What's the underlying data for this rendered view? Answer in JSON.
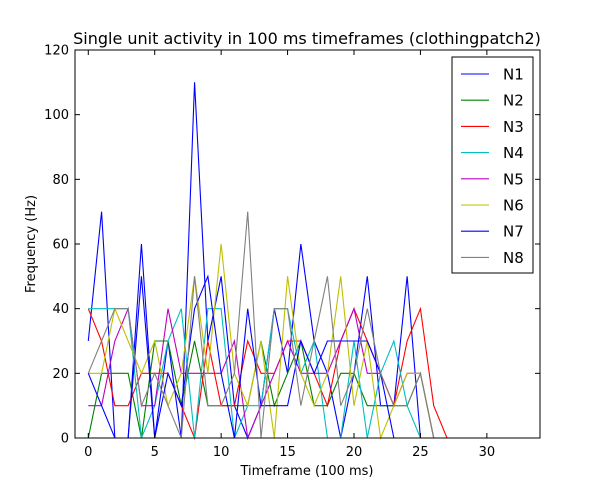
{
  "chart_data": {
    "type": "line",
    "title": "Single unit activity in 100 ms timeframes (clothingpatch2)",
    "xlabel": "Timeframe (100 ms)",
    "ylabel": "Frequency (Hz)",
    "xlim": [
      -1,
      34
    ],
    "ylim": [
      0,
      120
    ],
    "xticks": [
      0,
      5,
      10,
      15,
      20,
      25,
      30
    ],
    "yticks": [
      0,
      20,
      40,
      60,
      80,
      100,
      120
    ],
    "legend": "top-right",
    "grid": false,
    "x": [
      0,
      1,
      2,
      3,
      4,
      5,
      6,
      7,
      8,
      9,
      10,
      11,
      12,
      13,
      14,
      15,
      16,
      17,
      18,
      19,
      20,
      21,
      22,
      23,
      24,
      25,
      26,
      27,
      28,
      29,
      30,
      31,
      32,
      33
    ],
    "series": [
      {
        "name": "N1",
        "color": "#0000ff",
        "values": [
          30,
          70,
          0,
          0,
          60,
          0,
          30,
          0,
          110,
          30,
          50,
          10,
          0,
          10,
          40,
          20,
          60,
          30,
          20,
          0,
          20,
          50,
          10,
          10,
          50,
          0,
          0,
          0,
          0,
          0,
          0,
          0,
          0,
          0
        ]
      },
      {
        "name": "N2",
        "color": "#008000",
        "values": [
          0,
          20,
          20,
          20,
          0,
          30,
          30,
          10,
          30,
          10,
          10,
          10,
          10,
          30,
          10,
          20,
          30,
          10,
          10,
          20,
          20,
          10,
          10,
          10,
          10,
          20,
          0,
          0,
          0,
          0,
          0,
          0,
          0,
          0
        ]
      },
      {
        "name": "N3",
        "color": "#ff0000",
        "values": [
          40,
          30,
          10,
          10,
          20,
          20,
          20,
          10,
          0,
          30,
          10,
          10,
          30,
          20,
          20,
          30,
          30,
          20,
          10,
          30,
          40,
          30,
          20,
          10,
          30,
          40,
          10,
          0,
          0,
          0,
          0,
          0,
          0,
          0
        ]
      },
      {
        "name": "N4",
        "color": "#00bfbf",
        "values": [
          40,
          40,
          40,
          40,
          0,
          10,
          30,
          40,
          0,
          40,
          40,
          0,
          10,
          10,
          40,
          40,
          20,
          30,
          0,
          0,
          30,
          0,
          20,
          30,
          10,
          0,
          0,
          0,
          0,
          0,
          0,
          0,
          0,
          0
        ]
      },
      {
        "name": "N5",
        "color": "#bf00bf",
        "values": [
          10,
          10,
          30,
          40,
          10,
          10,
          40,
          20,
          20,
          20,
          20,
          30,
          0,
          10,
          20,
          30,
          20,
          20,
          20,
          30,
          40,
          20,
          20,
          10,
          20,
          20,
          0,
          0,
          0,
          0,
          0,
          0,
          0,
          0
        ]
      },
      {
        "name": "N6",
        "color": "#bfbf00",
        "values": [
          20,
          20,
          40,
          30,
          20,
          30,
          10,
          20,
          50,
          20,
          60,
          20,
          10,
          30,
          0,
          50,
          20,
          10,
          20,
          50,
          10,
          30,
          0,
          10,
          20,
          20,
          0,
          0,
          0,
          0,
          0,
          0,
          0,
          0
        ]
      },
      {
        "name": "N7",
        "color": "#0000ff",
        "values": [
          20,
          10,
          0,
          0,
          50,
          0,
          20,
          10,
          40,
          50,
          20,
          0,
          40,
          10,
          10,
          10,
          30,
          20,
          30,
          30,
          30,
          30,
          20,
          0,
          0,
          0,
          0,
          0,
          0,
          0,
          0,
          0,
          0,
          0
        ]
      },
      {
        "name": "N8",
        "color": "#808080",
        "values": [
          20,
          30,
          40,
          40,
          10,
          20,
          10,
          0,
          50,
          10,
          10,
          20,
          70,
          0,
          40,
          40,
          10,
          30,
          50,
          10,
          20,
          40,
          20,
          10,
          10,
          20,
          0,
          0,
          0,
          0,
          0,
          0,
          0,
          0
        ]
      }
    ]
  }
}
